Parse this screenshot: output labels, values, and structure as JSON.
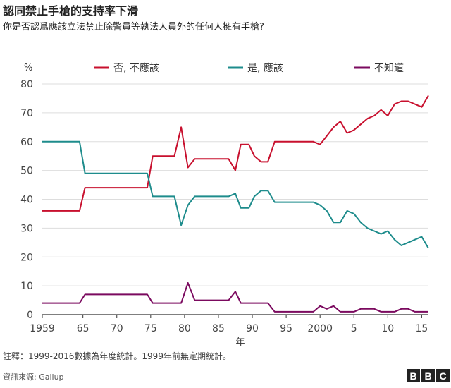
{
  "header": {
    "title": "認同禁止手槍的支持率下滑",
    "subtitle": "你是否認爲應該立法禁止除警員等執法人員外的任何人擁有手槍?"
  },
  "footer": {
    "note": "註釋：1999-2016數據為年度統計。1999年前無定期統計。",
    "source": "資訊來源: Gallup",
    "logo_letters": [
      "B",
      "B",
      "C"
    ]
  },
  "chart_data": {
    "type": "line",
    "ylabel": "%",
    "xlabel": "年",
    "ylim": [
      0,
      80
    ],
    "yticks": [
      0,
      10,
      20,
      30,
      40,
      50,
      60,
      70,
      80
    ],
    "xlim": [
      1959,
      2016
    ],
    "xticks": [
      {
        "value": 1959,
        "label": "1959"
      },
      {
        "value": 1965,
        "label": "65"
      },
      {
        "value": 1970,
        "label": "70"
      },
      {
        "value": 1975,
        "label": "75"
      },
      {
        "value": 1980,
        "label": "80"
      },
      {
        "value": 1985,
        "label": "85"
      },
      {
        "value": 1990,
        "label": "90"
      },
      {
        "value": 1995,
        "label": "95"
      },
      {
        "value": 2000,
        "label": "2000"
      },
      {
        "value": 2005,
        "label": "5"
      },
      {
        "value": 2010,
        "label": "10"
      },
      {
        "value": 2015,
        "label": "15"
      }
    ],
    "grid": "horizontal",
    "legend_position": "top",
    "series": [
      {
        "name": "否, 不應該",
        "color": "#c8102e",
        "points": [
          [
            1959,
            36
          ],
          [
            1964.5,
            36
          ],
          [
            1965.3,
            44
          ],
          [
            1974.5,
            44
          ],
          [
            1975.3,
            55
          ],
          [
            1978.5,
            55
          ],
          [
            1979.5,
            65
          ],
          [
            1980.5,
            51
          ],
          [
            1981.5,
            54
          ],
          [
            1986.5,
            54
          ],
          [
            1987.5,
            50
          ],
          [
            1988.3,
            59
          ],
          [
            1989.5,
            59
          ],
          [
            1990.3,
            55
          ],
          [
            1991.3,
            53
          ],
          [
            1992.3,
            53
          ],
          [
            1993.3,
            60
          ],
          [
            1999,
            60
          ],
          [
            2000,
            59
          ],
          [
            2001,
            62
          ],
          [
            2002,
            65
          ],
          [
            2003,
            67
          ],
          [
            2004,
            63
          ],
          [
            2005,
            64
          ],
          [
            2006,
            66
          ],
          [
            2007,
            68
          ],
          [
            2008,
            69
          ],
          [
            2009,
            71
          ],
          [
            2010,
            69
          ],
          [
            2011,
            73
          ],
          [
            2012,
            74
          ],
          [
            2013,
            74
          ],
          [
            2015,
            72
          ],
          [
            2016,
            76
          ]
        ]
      },
      {
        "name": "是, 應該",
        "color": "#1e8c8c",
        "points": [
          [
            1959,
            60
          ],
          [
            1964.5,
            60
          ],
          [
            1965.3,
            49
          ],
          [
            1974.5,
            49
          ],
          [
            1975.3,
            41
          ],
          [
            1978.5,
            41
          ],
          [
            1979.5,
            31
          ],
          [
            1980.5,
            38
          ],
          [
            1981.5,
            41
          ],
          [
            1986.5,
            41
          ],
          [
            1987.5,
            42
          ],
          [
            1988.3,
            37
          ],
          [
            1989.5,
            37
          ],
          [
            1990.3,
            41
          ],
          [
            1991.3,
            43
          ],
          [
            1992.3,
            43
          ],
          [
            1993.3,
            39
          ],
          [
            1999,
            39
          ],
          [
            2000,
            38
          ],
          [
            2001,
            36
          ],
          [
            2002,
            32
          ],
          [
            2003,
            32
          ],
          [
            2004,
            36
          ],
          [
            2005,
            35
          ],
          [
            2006,
            32
          ],
          [
            2007,
            30
          ],
          [
            2008,
            29
          ],
          [
            2009,
            28
          ],
          [
            2010,
            29
          ],
          [
            2011,
            26
          ],
          [
            2012,
            24
          ],
          [
            2013,
            25
          ],
          [
            2015,
            27
          ],
          [
            2016,
            23
          ]
        ]
      },
      {
        "name": "不知道",
        "color": "#7b0a5f",
        "points": [
          [
            1959,
            4
          ],
          [
            1964.5,
            4
          ],
          [
            1965.3,
            7
          ],
          [
            1974.5,
            7
          ],
          [
            1975.3,
            4
          ],
          [
            1978.5,
            4
          ],
          [
            1979.5,
            4
          ],
          [
            1980.5,
            11
          ],
          [
            1981.5,
            5
          ],
          [
            1986.5,
            5
          ],
          [
            1987.5,
            8
          ],
          [
            1988.3,
            4
          ],
          [
            1989.5,
            4
          ],
          [
            1990.3,
            4
          ],
          [
            1991.3,
            4
          ],
          [
            1992.3,
            4
          ],
          [
            1993.3,
            1
          ],
          [
            1999,
            1
          ],
          [
            2000,
            3
          ],
          [
            2001,
            2
          ],
          [
            2002,
            3
          ],
          [
            2003,
            1
          ],
          [
            2004,
            1
          ],
          [
            2005,
            1
          ],
          [
            2006,
            2
          ],
          [
            2007,
            2
          ],
          [
            2008,
            2
          ],
          [
            2009,
            1
          ],
          [
            2010,
            1
          ],
          [
            2011,
            1
          ],
          [
            2012,
            2
          ],
          [
            2013,
            2
          ],
          [
            2014,
            1
          ],
          [
            2015,
            1
          ],
          [
            2016,
            1
          ]
        ]
      }
    ]
  }
}
